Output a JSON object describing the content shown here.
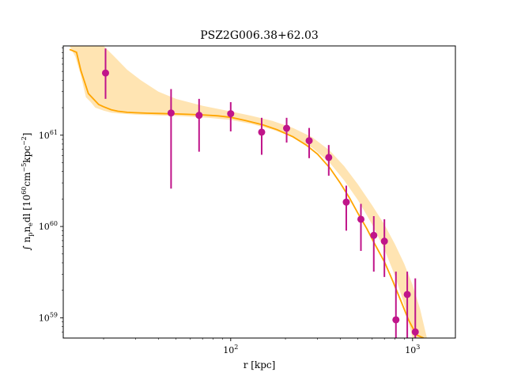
{
  "chart_data": {
    "type": "scatter",
    "title": "PSZ2G006.38+62.03",
    "xlabel": "r [kpc]",
    "ylabel": "∫ n",
    "ylabel_sub1": "p",
    "ylabel_mid": "n",
    "ylabel_sub2": "e",
    "ylabel_rest": "dl [10",
    "ylabel_sup1": "60",
    "ylabel_rest2": "cm",
    "ylabel_sup2": "−5",
    "ylabel_rest3": "kpc",
    "ylabel_sup3": "−2",
    "ylabel_end": "]",
    "x_scale": "log",
    "y_scale": "log",
    "xlim": [
      12,
      1720
    ],
    "ylim": [
      6e+58,
      9.5e+61
    ],
    "x_ticks": [
      {
        "value": 100,
        "base": "10",
        "exp": "2"
      },
      {
        "value": 1000,
        "base": "10",
        "exp": "3"
      }
    ],
    "y_ticks": [
      {
        "value": 1e+59,
        "base": "10",
        "exp": "59"
      },
      {
        "value": 1e+60,
        "base": "10",
        "exp": "60"
      },
      {
        "value": 1e+61,
        "base": "10",
        "exp": "61"
      }
    ],
    "colors": {
      "data": "#c0158a",
      "model_line": "#ffa500",
      "model_band": "#ffa500"
    },
    "grid": false,
    "points": [
      {
        "x": 20.5,
        "y": 4.8e+61,
        "ylo": 2.5e+61,
        "yhi": 8.9e+61
      },
      {
        "x": 47,
        "y": 1.75e+61,
        "ylo": 2.6e+60,
        "yhi": 3.2e+61
      },
      {
        "x": 67,
        "y": 1.65e+61,
        "ylo": 6.6e+60,
        "yhi": 2.5e+61
      },
      {
        "x": 100,
        "y": 1.72e+61,
        "ylo": 1.1e+61,
        "yhi": 2.3e+61
      },
      {
        "x": 148,
        "y": 1.08e+61,
        "ylo": 6.1e+60,
        "yhi": 1.55e+61
      },
      {
        "x": 203,
        "y": 1.19e+61,
        "ylo": 8.3e+60,
        "yhi": 1.55e+61
      },
      {
        "x": 270,
        "y": 8.7e+60,
        "ylo": 5.6e+60,
        "yhi": 1.2e+61
      },
      {
        "x": 346,
        "y": 5.7e+60,
        "ylo": 3.6e+60,
        "yhi": 7.8e+60
      },
      {
        "x": 432,
        "y": 1.85e+60,
        "ylo": 9e+59,
        "yhi": 2.8e+60
      },
      {
        "x": 520,
        "y": 1.2e+60,
        "ylo": 5.4e+59,
        "yhi": 1.77e+60
      },
      {
        "x": 612,
        "y": 8e+59,
        "ylo": 3.2e+59,
        "yhi": 1.3e+60
      },
      {
        "x": 700,
        "y": 6.9e+59,
        "ylo": 2.8e+59,
        "yhi": 1.2e+60
      },
      {
        "x": 810,
        "y": 9.5e+58,
        "ylo": 6e+58,
        "yhi": 3.2e+59
      },
      {
        "x": 935,
        "y": 1.8e+59,
        "ylo": 6e+58,
        "yhi": 3.2e+59
      },
      {
        "x": 1035,
        "y": 7e+58,
        "ylo": 6e+58,
        "yhi": 2.7e+59
      }
    ],
    "model_line": {
      "x": [
        13,
        14.2,
        15,
        16.5,
        17.6,
        18.8,
        20,
        22,
        24,
        27,
        30,
        35,
        40,
        50,
        60,
        70,
        85,
        100,
        120,
        150,
        180,
        220,
        260,
        300,
        350,
        400,
        450,
        500,
        560,
        620,
        700,
        780,
        860,
        950,
        1050,
        1150
      ],
      "y": [
        8.7e+61,
        8.1e+61,
        5.1e+61,
        2.85e+61,
        2.49e+61,
        2.17e+61,
        2.05e+61,
        1.9e+61,
        1.83e+61,
        1.78e+61,
        1.76e+61,
        1.74e+61,
        1.73e+61,
        1.71e+61,
        1.69e+61,
        1.67e+61,
        1.63e+61,
        1.57e+61,
        1.45e+61,
        1.3e+61,
        1.15e+61,
        9.6e+60,
        7.8e+60,
        6.2e+60,
        4.4e+60,
        3e+60,
        2.05e+60,
        1.4e+60,
        9.5e+59,
        6.4e+59,
        4.1e+59,
        2.5e+59,
        1.55e+59,
        9.5e+58,
        6.5e+58,
        6e+58
      ]
    },
    "model_band_upper": {
      "x": [
        13,
        15,
        17,
        20,
        23,
        27,
        32,
        40,
        50,
        70,
        100,
        130,
        170,
        220,
        280,
        350,
        420,
        500,
        600,
        700,
        800,
        900,
        1000,
        1100,
        1200
      ],
      "y": [
        9.5e+61,
        9.5e+61,
        9.5e+61,
        9.5e+61,
        7.2e+61,
        5.2e+61,
        4e+61,
        3e+61,
        2.5e+61,
        2.1e+61,
        1.82e+61,
        1.63e+61,
        1.43e+61,
        1.2e+61,
        9.5e+60,
        6.8e+60,
        4.6e+60,
        2.9e+60,
        1.7e+60,
        1.05e+60,
        6.4e+59,
        3.9e+59,
        2.3e+59,
        1.25e+59,
        6e+58
      ]
    },
    "model_band_lower": {
      "x": [
        13,
        14,
        15,
        16,
        17,
        18,
        20,
        22,
        25,
        30,
        40,
        55,
        75,
        100,
        130,
        170,
        220,
        280,
        350,
        420,
        500,
        600,
        700,
        800,
        900,
        1000
      ],
      "y": [
        9.5e+61,
        7.2e+61,
        4.5e+61,
        2.6e+61,
        2.3e+61,
        2e+61,
        1.86e+61,
        1.77e+61,
        1.72e+61,
        1.68e+61,
        1.65e+61,
        1.61e+61,
        1.55e+61,
        1.47e+61,
        1.33e+61,
        1.15e+61,
        9.5e+60,
        7.3e+60,
        5e+60,
        3.2e+60,
        1.95e+60,
        1.05e+60,
        5.6e+59,
        2.9e+59,
        1.4e+59,
        6e+58
      ]
    }
  }
}
